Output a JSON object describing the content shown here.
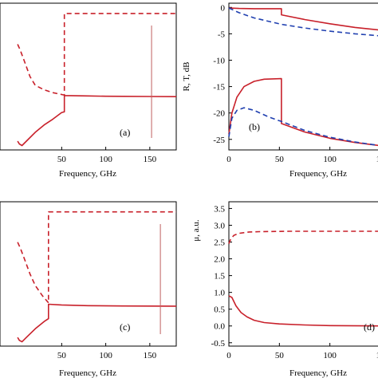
{
  "chart_data": [
    {
      "panel": "a",
      "type": "line",
      "panel_label": "(a)",
      "xlabel": "Frequency, GHz",
      "ylabel": "",
      "x_ticks": [
        "50",
        "100",
        "150"
      ],
      "y_ticks": [],
      "xlim": [
        0,
        180
      ],
      "ylim": [
        0,
        1
      ],
      "series": [
        {
          "style": "solid",
          "points": [
            [
              0,
              0.06
            ],
            [
              2,
              0.04
            ],
            [
              5,
              0.03
            ],
            [
              10,
              0.06
            ],
            [
              20,
              0.12
            ],
            [
              30,
              0.17
            ],
            [
              40,
              0.21
            ],
            [
              50,
              0.255
            ],
            [
              53,
              0.26
            ],
            [
              53,
              0.37
            ],
            [
              60,
              0.37
            ],
            [
              80,
              0.368
            ],
            [
              100,
              0.366
            ],
            [
              120,
              0.365
            ],
            [
              150,
              0.364
            ],
            [
              180,
              0.363
            ]
          ]
        },
        {
          "style": "dashed",
          "points": [
            [
              0,
              0.72
            ],
            [
              3,
              0.68
            ],
            [
              8,
              0.6
            ],
            [
              14,
              0.5
            ],
            [
              20,
              0.44
            ],
            [
              30,
              0.41
            ],
            [
              40,
              0.39
            ],
            [
              52,
              0.375
            ],
            [
              53,
              0.375
            ],
            [
              53,
              0.93
            ],
            [
              100,
              0.93
            ],
            [
              180,
              0.93
            ]
          ]
        }
      ],
      "marker_x": 152
    },
    {
      "panel": "b",
      "type": "line",
      "panel_label": "(b)",
      "xlabel": "Frequency, GHz",
      "ylabel": "R, T, dB",
      "x_ticks": [
        "0",
        "50",
        "100",
        "15"
      ],
      "y_ticks": [
        "0",
        "-5",
        "-10",
        "-15",
        "-20",
        "-25"
      ],
      "xlim": [
        0,
        150
      ],
      "ylim": [
        -27,
        0.8
      ],
      "series": [
        {
          "style": "solid",
          "color": "#c8202a",
          "points": [
            [
              0,
              -0.1
            ],
            [
              10,
              -0.2
            ],
            [
              25,
              -0.25
            ],
            [
              52,
              -0.25
            ],
            [
              52,
              -1.4
            ],
            [
              75,
              -2.3
            ],
            [
              100,
              -3.1
            ],
            [
              125,
              -3.8
            ],
            [
              150,
              -4.3
            ]
          ]
        },
        {
          "style": "dashed",
          "color": "#2040b0",
          "points": [
            [
              0,
              -0.1
            ],
            [
              10,
              -1.0
            ],
            [
              25,
              -2.0
            ],
            [
              52,
              -3.2
            ],
            [
              75,
              -3.9
            ],
            [
              100,
              -4.5
            ],
            [
              125,
              -5.0
            ],
            [
              150,
              -5.4
            ]
          ]
        },
        {
          "style": "solid",
          "color": "#c8202a",
          "points": [
            [
              0,
              -24
            ],
            [
              3,
              -20
            ],
            [
              8,
              -17
            ],
            [
              15,
              -15
            ],
            [
              25,
              -14
            ],
            [
              35,
              -13.6
            ],
            [
              52,
              -13.5
            ],
            [
              52,
              -22
            ],
            [
              75,
              -23.6
            ],
            [
              100,
              -24.8
            ],
            [
              125,
              -25.6
            ],
            [
              150,
              -26.2
            ]
          ]
        },
        {
          "style": "dashed",
          "color": "#2040b0",
          "points": [
            [
              0,
              -24.5
            ],
            [
              3,
              -21
            ],
            [
              8,
              -19.5
            ],
            [
              15,
              -19.0
            ],
            [
              25,
              -19.5
            ],
            [
              40,
              -20.8
            ],
            [
              52,
              -21.6
            ],
            [
              75,
              -23.3
            ],
            [
              100,
              -24.6
            ],
            [
              125,
              -25.5
            ],
            [
              150,
              -26.2
            ]
          ]
        }
      ]
    },
    {
      "panel": "c",
      "type": "line",
      "panel_label": "(c)",
      "xlabel": "Frequency, GHz",
      "ylabel": "",
      "x_ticks": [
        "50",
        "100",
        "150"
      ],
      "y_ticks": [],
      "xlim": [
        0,
        180
      ],
      "ylim": [
        0,
        1
      ],
      "series": [
        {
          "style": "solid",
          "points": [
            [
              0,
              0.06
            ],
            [
              2,
              0.04
            ],
            [
              5,
              0.03
            ],
            [
              10,
              0.06
            ],
            [
              20,
              0.12
            ],
            [
              30,
              0.17
            ],
            [
              35,
              0.19
            ],
            [
              35,
              0.29
            ],
            [
              50,
              0.285
            ],
            [
              80,
              0.28
            ],
            [
              120,
              0.278
            ],
            [
              180,
              0.277
            ]
          ]
        },
        {
          "style": "dashed",
          "points": [
            [
              0,
              0.72
            ],
            [
              3,
              0.68
            ],
            [
              8,
              0.6
            ],
            [
              14,
              0.5
            ],
            [
              20,
              0.42
            ],
            [
              28,
              0.35
            ],
            [
              35,
              0.3
            ],
            [
              35,
              0.93
            ],
            [
              100,
              0.93
            ],
            [
              180,
              0.93
            ]
          ]
        }
      ],
      "marker_x": 162
    },
    {
      "panel": "d",
      "type": "line",
      "panel_label": "(d)",
      "xlabel": "Frequency, GHz",
      "ylabel": "μ, a.u.",
      "x_ticks": [
        "0",
        "50",
        "100",
        "15"
      ],
      "y_ticks": [
        "3.5",
        "3.0",
        "2.5",
        "2.0",
        "1.5",
        "1.0",
        "0.5",
        "0.0",
        "-0.5"
      ],
      "xlim": [
        0,
        150
      ],
      "ylim": [
        -0.6,
        3.7
      ],
      "series": [
        {
          "style": "dashed",
          "points": [
            [
              0,
              2.45
            ],
            [
              2,
              2.6
            ],
            [
              5,
              2.7
            ],
            [
              10,
              2.76
            ],
            [
              20,
              2.8
            ],
            [
              30,
              2.81
            ],
            [
              60,
              2.82
            ],
            [
              100,
              2.82
            ],
            [
              150,
              2.82
            ]
          ]
        },
        {
          "style": "solid",
          "points": [
            [
              0,
              0.9
            ],
            [
              3,
              0.85
            ],
            [
              7,
              0.6
            ],
            [
              12,
              0.4
            ],
            [
              18,
              0.27
            ],
            [
              25,
              0.17
            ],
            [
              35,
              0.1
            ],
            [
              50,
              0.06
            ],
            [
              75,
              0.03
            ],
            [
              100,
              0.01
            ],
            [
              150,
              0.0
            ]
          ]
        }
      ]
    }
  ]
}
